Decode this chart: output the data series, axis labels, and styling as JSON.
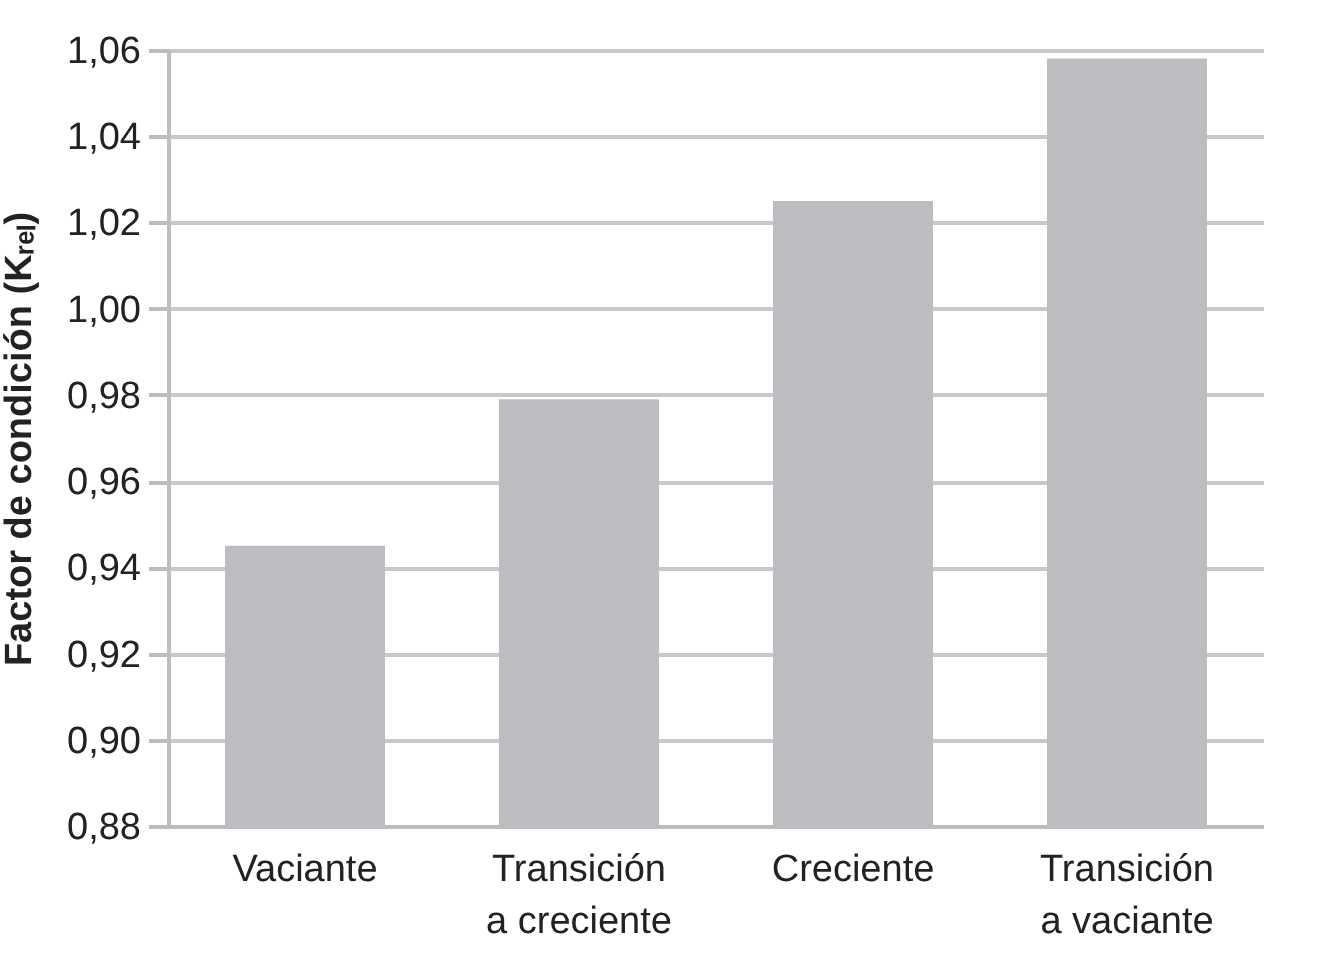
{
  "chart_data": {
    "type": "bar",
    "ylabel": "Factor de condición (Kᵣₑₗ)",
    "categories": [
      "Vaciante",
      "Transición a creciente",
      "Creciente",
      "Transición a vaciante"
    ],
    "values": [
      0.945,
      0.979,
      1.025,
      1.058
    ],
    "color": "#bcbdc0",
    "ylim": [
      0.88,
      1.06
    ],
    "yticks": [
      {
        "value": 0.88,
        "label": "0,88"
      },
      {
        "value": 0.9,
        "label": "0,90"
      },
      {
        "value": 0.92,
        "label": "0,92"
      },
      {
        "value": 0.94,
        "label": "0,94"
      },
      {
        "value": 0.96,
        "label": "0,96"
      },
      {
        "value": 0.98,
        "label": "0,98"
      },
      {
        "value": 1.0,
        "label": "1,00"
      },
      {
        "value": 1.02,
        "label": "1,02"
      },
      {
        "value": 1.04,
        "label": "1,04"
      },
      {
        "value": 1.06,
        "label": "1,06"
      }
    ],
    "grid": "y"
  }
}
